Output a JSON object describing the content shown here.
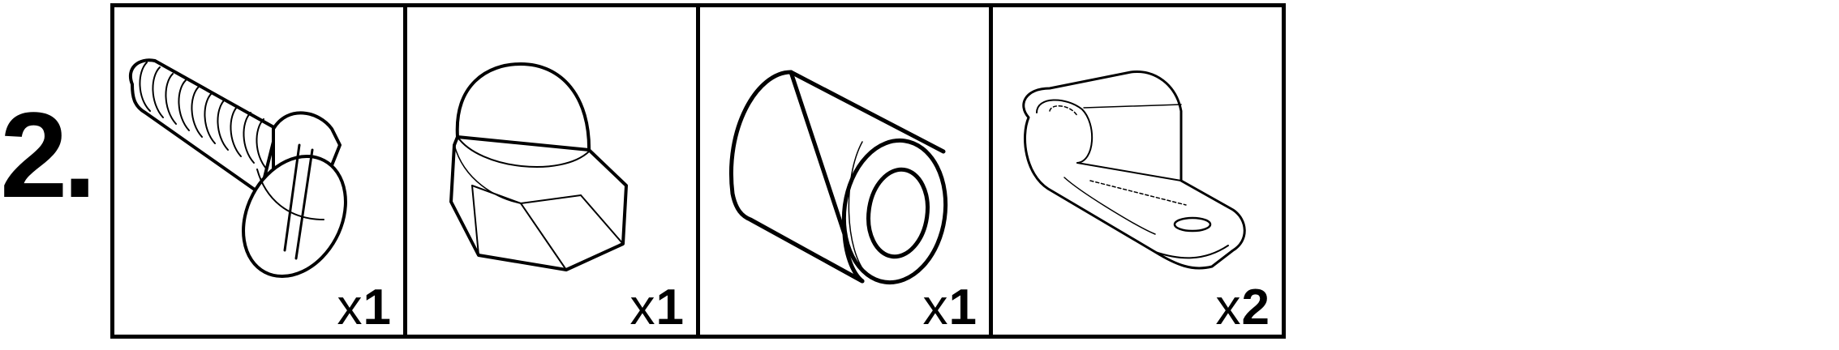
{
  "step": {
    "number": "2."
  },
  "parts": [
    {
      "icon": "slotted-screw-icon",
      "quantity_prefix": "x",
      "quantity": "1"
    },
    {
      "icon": "acorn-nut-icon",
      "quantity_prefix": "x",
      "quantity": "1"
    },
    {
      "icon": "spacer-cylinder-icon",
      "quantity_prefix": "x",
      "quantity": "1"
    },
    {
      "icon": "cable-clamp-icon",
      "quantity_prefix": "x",
      "quantity": "2"
    }
  ]
}
